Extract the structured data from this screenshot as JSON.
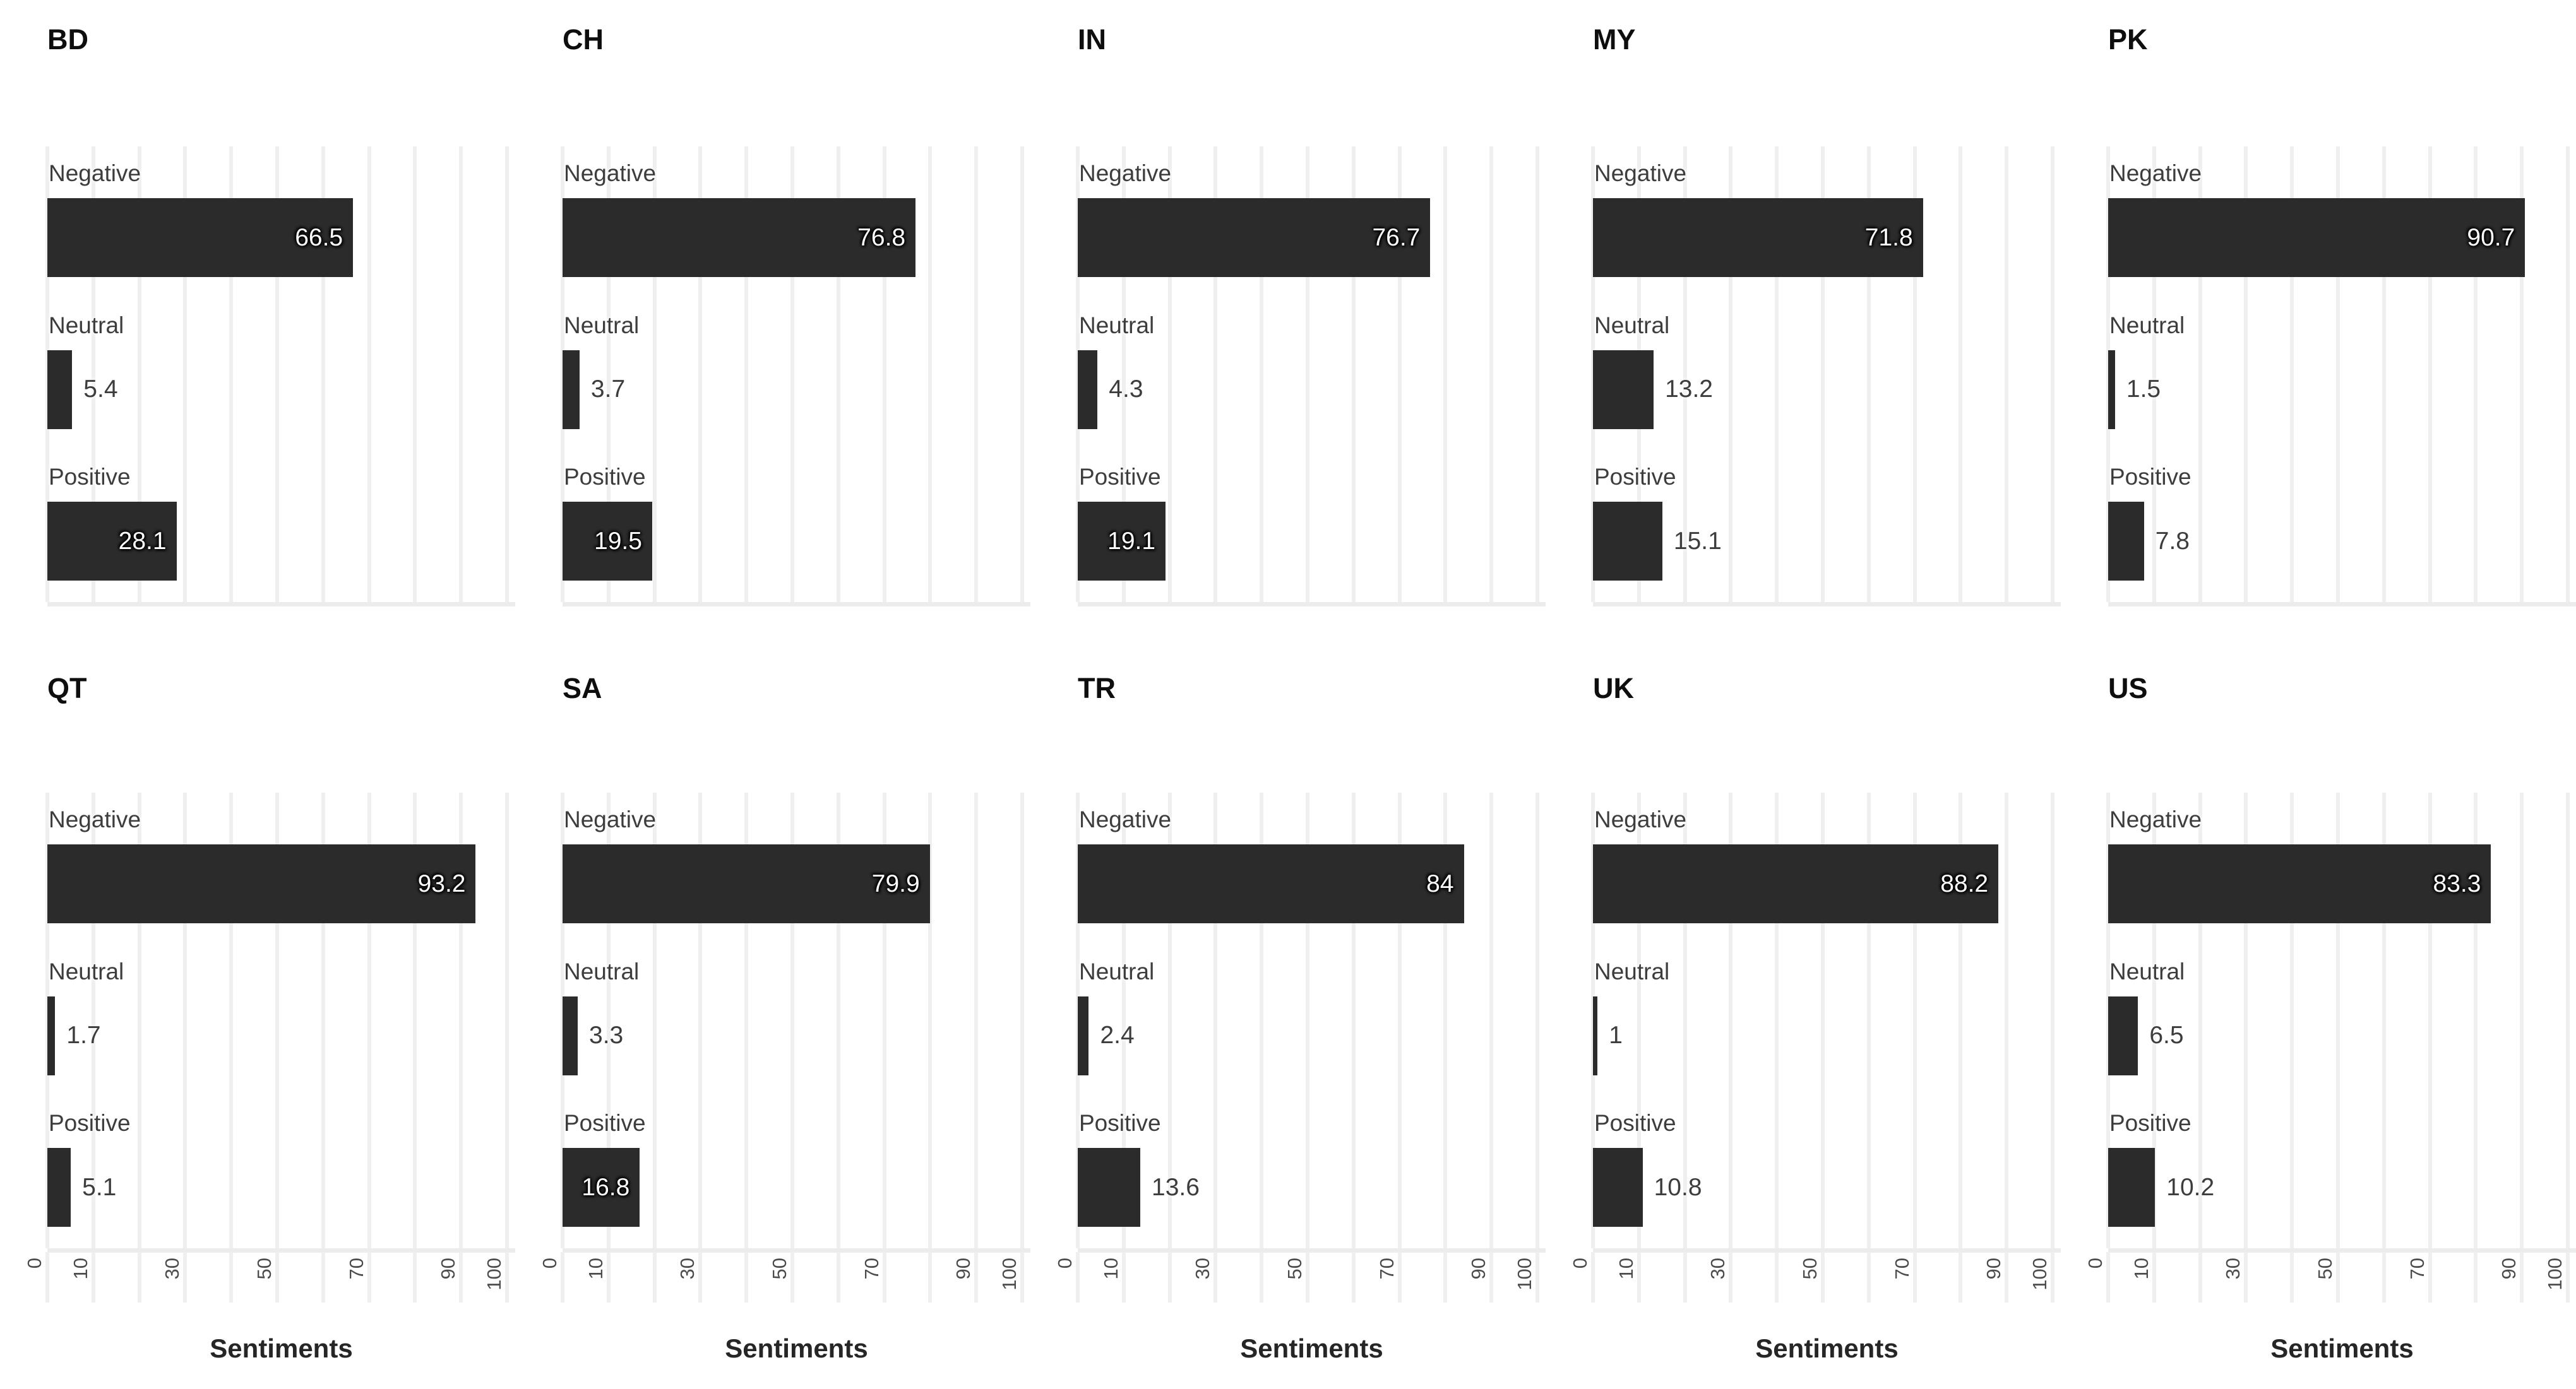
{
  "chart_data": {
    "type": "bar",
    "orientation": "horizontal",
    "layout": "facet-grid-2x5",
    "categories": [
      "Negative",
      "Neutral",
      "Positive"
    ],
    "facets": [
      {
        "title": "BD",
        "values": [
          66.5,
          5.4,
          28.1
        ],
        "labels": [
          "66.5",
          "5.4",
          "28.1"
        ]
      },
      {
        "title": "CH",
        "values": [
          76.8,
          3.7,
          19.5
        ],
        "labels": [
          "76.8",
          "3.7",
          "19.5"
        ]
      },
      {
        "title": "IN",
        "values": [
          76.7,
          4.3,
          19.1
        ],
        "labels": [
          "76.7",
          "4.3",
          "19.1"
        ]
      },
      {
        "title": "MY",
        "values": [
          71.8,
          13.2,
          15.1
        ],
        "labels": [
          "71.8",
          "13.2",
          "15.1"
        ]
      },
      {
        "title": "PK",
        "values": [
          90.7,
          1.5,
          7.8
        ],
        "labels": [
          "90.7",
          "1.5",
          "7.8"
        ]
      },
      {
        "title": "QT",
        "values": [
          93.2,
          1.7,
          5.1
        ],
        "labels": [
          "93.2",
          "1.7",
          "5.1"
        ]
      },
      {
        "title": "SA",
        "values": [
          79.9,
          3.3,
          16.8
        ],
        "labels": [
          "79.9",
          "3.3",
          "16.8"
        ]
      },
      {
        "title": "TR",
        "values": [
          84,
          2.4,
          13.6
        ],
        "labels": [
          "84",
          "2.4",
          "13.6"
        ]
      },
      {
        "title": "UK",
        "values": [
          88.2,
          1,
          10.8
        ],
        "labels": [
          "88.2",
          "1",
          "10.8"
        ]
      },
      {
        "title": "US",
        "values": [
          83.3,
          6.5,
          10.2
        ],
        "labels": [
          "83.3",
          "6.5",
          "10.2"
        ]
      }
    ],
    "xlabel": "Sentiments",
    "x_ticks": {
      "labels": [
        "0",
        "10",
        "30",
        "50",
        "70",
        "90",
        "100"
      ],
      "positions": [
        0,
        10,
        30,
        50,
        70,
        90,
        100
      ]
    },
    "xlim": [
      0,
      105
    ],
    "gridlines_every": 10,
    "grid_on": true,
    "legend": "none",
    "bar_color": "#2b2b2b",
    "gridline_color": "#efefef",
    "inside_label_color": "#ffffff",
    "outside_label_color": "#3d3d3d"
  }
}
